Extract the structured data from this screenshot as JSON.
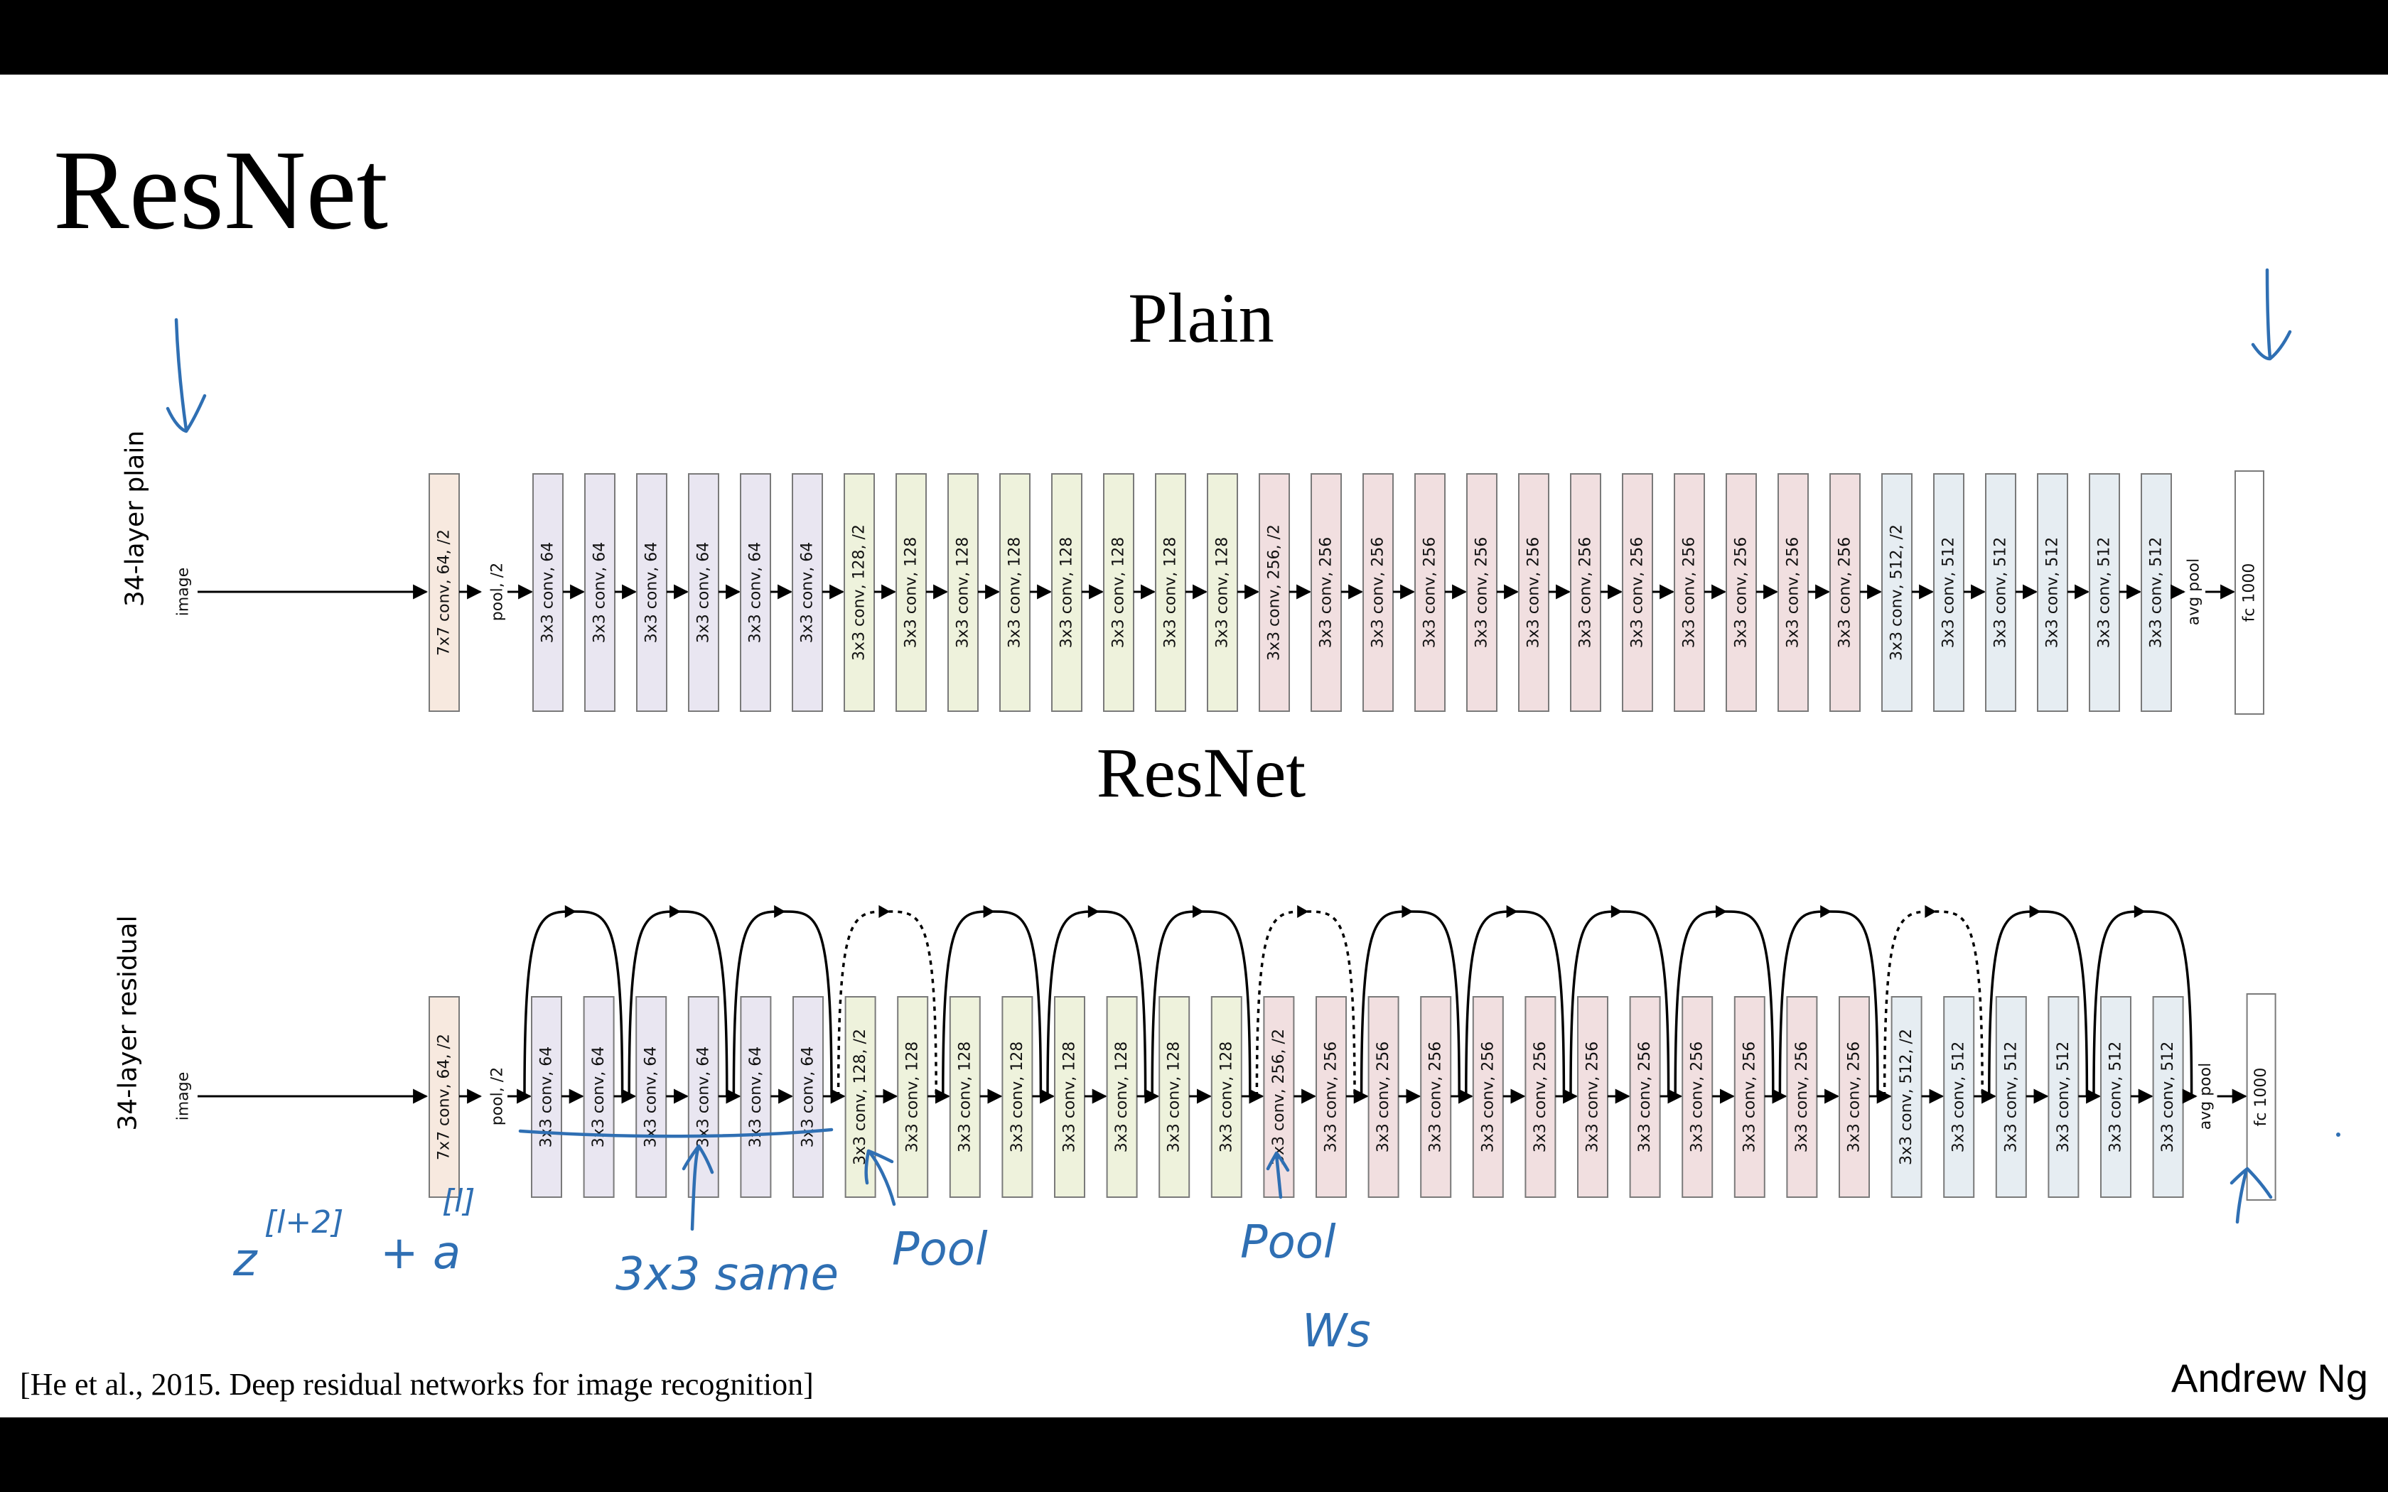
{
  "title": "ResNet",
  "plain": {
    "subtitle": "Plain",
    "row_label": "34-layer plain"
  },
  "residual": {
    "subtitle": "ResNet",
    "row_label": "34-layer residual",
    "skip_styles": [
      "solid",
      "solid",
      "solid",
      "dotted",
      "solid",
      "solid",
      "solid",
      "dotted",
      "solid",
      "solid",
      "solid",
      "solid",
      "solid",
      "dotted",
      "solid",
      "solid"
    ]
  },
  "input_label": "image",
  "pool_label": "pool, /2",
  "avgpool_label": "avg pool",
  "stem": {
    "label": "7x7 conv, 64, /2",
    "color": "#f7e9df"
  },
  "fc": {
    "label": "fc 1000",
    "color": "#ffffff"
  },
  "layers": [
    {
      "label": "3x3 conv, 64",
      "color": "#e9e6f1"
    },
    {
      "label": "3x3 conv, 64",
      "color": "#e9e6f1"
    },
    {
      "label": "3x3 conv, 64",
      "color": "#e9e6f1"
    },
    {
      "label": "3x3 conv, 64",
      "color": "#e9e6f1"
    },
    {
      "label": "3x3 conv, 64",
      "color": "#e9e6f1"
    },
    {
      "label": "3x3 conv, 64",
      "color": "#e9e6f1"
    },
    {
      "label": "3x3 conv, 128, /2",
      "color": "#eef2dc"
    },
    {
      "label": "3x3 conv, 128",
      "color": "#eef2dc"
    },
    {
      "label": "3x3 conv, 128",
      "color": "#eef2dc"
    },
    {
      "label": "3x3 conv, 128",
      "color": "#eef2dc"
    },
    {
      "label": "3x3 conv, 128",
      "color": "#eef2dc"
    },
    {
      "label": "3x3 conv, 128",
      "color": "#eef2dc"
    },
    {
      "label": "3x3 conv, 128",
      "color": "#eef2dc"
    },
    {
      "label": "3x3 conv, 128",
      "color": "#eef2dc"
    },
    {
      "label": "3x3 conv, 256, /2",
      "color": "#f1dfe0"
    },
    {
      "label": "3x3 conv, 256",
      "color": "#f1dfe0"
    },
    {
      "label": "3x3 conv, 256",
      "color": "#f1dfe0"
    },
    {
      "label": "3x3 conv, 256",
      "color": "#f1dfe0"
    },
    {
      "label": "3x3 conv, 256",
      "color": "#f1dfe0"
    },
    {
      "label": "3x3 conv, 256",
      "color": "#f1dfe0"
    },
    {
      "label": "3x3 conv, 256",
      "color": "#f1dfe0"
    },
    {
      "label": "3x3 conv, 256",
      "color": "#f1dfe0"
    },
    {
      "label": "3x3 conv, 256",
      "color": "#f1dfe0"
    },
    {
      "label": "3x3 conv, 256",
      "color": "#f1dfe0"
    },
    {
      "label": "3x3 conv, 256",
      "color": "#f1dfe0"
    },
    {
      "label": "3x3 conv, 256",
      "color": "#f1dfe0"
    },
    {
      "label": "3x3 conv, 512, /2",
      "color": "#e6edf2"
    },
    {
      "label": "3x3 conv, 512",
      "color": "#e6edf2"
    },
    {
      "label": "3x3 conv, 512",
      "color": "#e6edf2"
    },
    {
      "label": "3x3 conv, 512",
      "color": "#e6edf2"
    },
    {
      "label": "3x3 conv, 512",
      "color": "#e6edf2"
    },
    {
      "label": "3x3 conv, 512",
      "color": "#e6edf2"
    }
  ],
  "annotations": {
    "z_expr": "z",
    "z_sup": "[l+2]",
    "plus_a": "+ a",
    "a_sup": "[l]",
    "same": "3x3 same",
    "pool_1": "Pool",
    "pool_2": "Pool",
    "ws": "Ws",
    "ink_color": "#2f6fb3"
  },
  "citation": "[He et al., 2015. Deep residual networks for image recognition]",
  "author": "Andrew Ng"
}
